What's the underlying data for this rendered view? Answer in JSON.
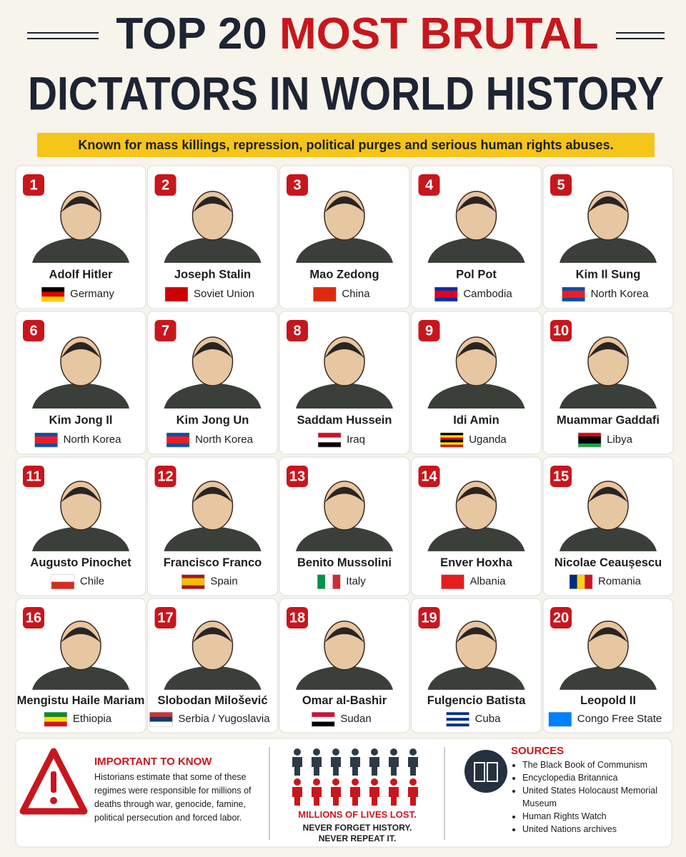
{
  "header": {
    "title_part1": "TOP 20",
    "title_part2": "MOST BRUTAL",
    "title_line2": "DICTATORS IN WORLD HISTORY",
    "subtitle": "Known for mass killings, repression, political purges and serious human rights abuses."
  },
  "cards": [
    {
      "rank": 1,
      "name": "Adolf Hitler",
      "country": "Germany"
    },
    {
      "rank": 2,
      "name": "Joseph Stalin",
      "country": "Soviet Union"
    },
    {
      "rank": 3,
      "name": "Mao Zedong",
      "country": "China"
    },
    {
      "rank": 4,
      "name": "Pol Pot",
      "country": "Cambodia"
    },
    {
      "rank": 5,
      "name": "Kim Il Sung",
      "country": "North Korea"
    },
    {
      "rank": 6,
      "name": "Kim Jong Il",
      "country": "North Korea"
    },
    {
      "rank": 7,
      "name": "Kim Jong Un",
      "country": "North Korea"
    },
    {
      "rank": 8,
      "name": "Saddam Hussein",
      "country": "Iraq"
    },
    {
      "rank": 9,
      "name": "Idi Amin",
      "country": "Uganda"
    },
    {
      "rank": 10,
      "name": "Muammar Gaddafi",
      "country": "Libya"
    },
    {
      "rank": 11,
      "name": "Augusto Pinochet",
      "country": "Chile"
    },
    {
      "rank": 12,
      "name": "Francisco Franco",
      "country": "Spain"
    },
    {
      "rank": 13,
      "name": "Benito Mussolini",
      "country": "Italy"
    },
    {
      "rank": 14,
      "name": "Enver Hoxha",
      "country": "Albania"
    },
    {
      "rank": 15,
      "name": "Nicolae Ceaușescu",
      "country": "Romania"
    },
    {
      "rank": 16,
      "name": "Mengistu Haile Mariam",
      "country": "Ethiopia"
    },
    {
      "rank": 17,
      "name": "Slobodan Milošević",
      "country": "Serbia / Yugoslavia"
    },
    {
      "rank": 18,
      "name": "Omar al-Bashir",
      "country": "Sudan"
    },
    {
      "rank": 19,
      "name": "Fulgencio Batista",
      "country": "Cuba"
    },
    {
      "rank": 20,
      "name": "Leopold II",
      "country": "Congo Free State"
    }
  ],
  "note": {
    "heading": "IMPORTANT TO KNOW",
    "text": "Historians estimate that some of these regimes were responsible for millions of deaths through war, genocide, famine, political persecution and forced labor."
  },
  "center": {
    "line1": "MILLIONS OF LIVES LOST.",
    "line2": "NEVER FORGET HISTORY.",
    "line3": "NEVER REPEAT IT."
  },
  "sources": {
    "heading": "SOURCES",
    "items": [
      "The Black Book of Communism",
      "Encyclopedia Britannica",
      "United States Holocaust Memorial Museum",
      "Human Rights Watch",
      "United Nations archives"
    ]
  }
}
